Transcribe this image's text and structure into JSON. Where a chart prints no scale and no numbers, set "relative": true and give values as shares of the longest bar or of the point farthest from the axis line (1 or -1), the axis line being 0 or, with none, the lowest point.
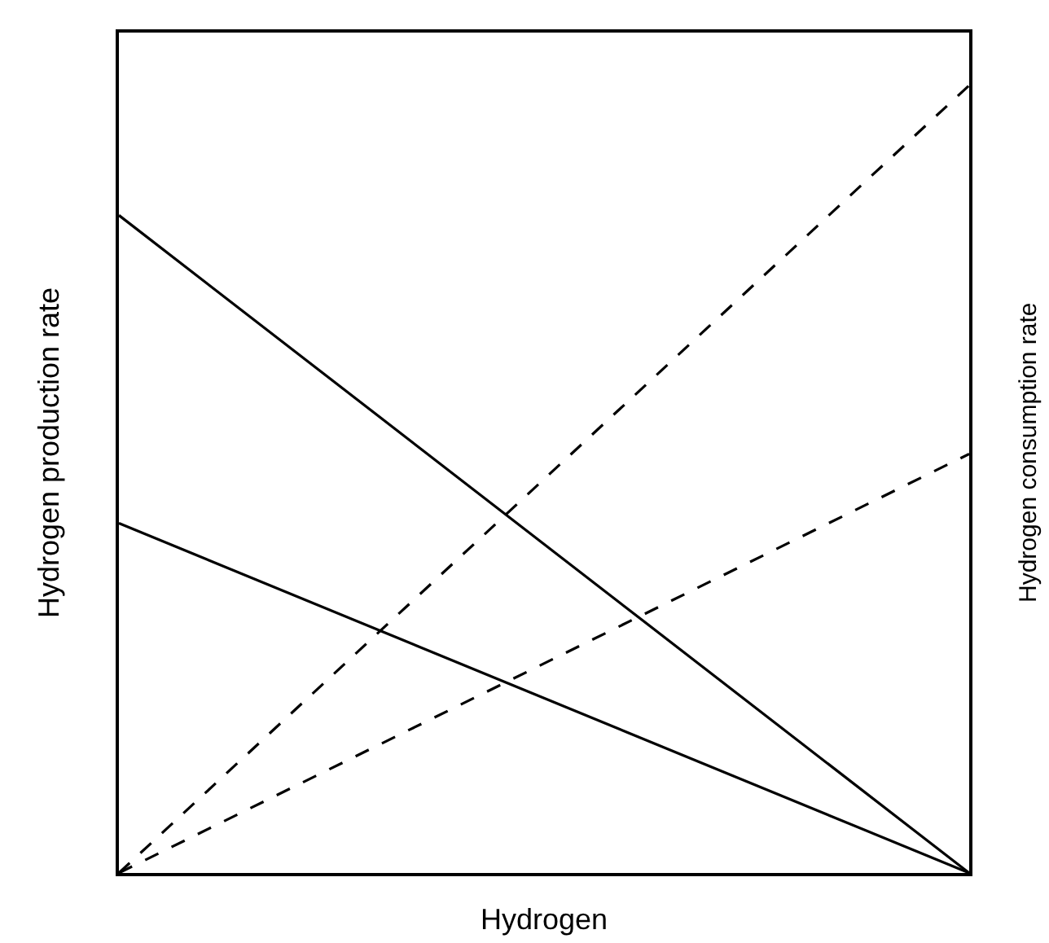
{
  "chart_data": {
    "type": "line",
    "relative": true,
    "xlabel": "Hydrogen",
    "ylabel": "Hydrogen production rate",
    "y2label": "Hydrogen consumption rate",
    "categories": [
      null,
      null
    ],
    "legend": false,
    "marker": "none",
    "series": [
      {
        "color": "#000000",
        "line_style": "solid",
        "values": [
          0.835,
          0
        ]
      },
      {
        "color": "#000000",
        "line_style": "solid",
        "values": [
          0.444,
          0
        ]
      },
      {
        "color": "#000000",
        "line_style": "dashed",
        "values": [
          0,
          1
        ]
      },
      {
        "color": "#000000",
        "line_style": "dashed",
        "values": [
          0,
          0.532
        ]
      }
    ]
  }
}
